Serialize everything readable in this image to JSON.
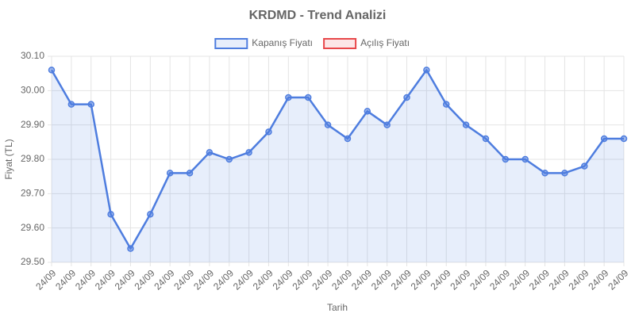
{
  "chart_data": {
    "type": "line",
    "title": "KRDMD - Trend Analizi",
    "x_label": "Tarih",
    "y_label": "Fiyat (TL)",
    "categories": [
      "24/09",
      "24/09",
      "24/09",
      "24/09",
      "24/09",
      "24/09",
      "24/09",
      "24/09",
      "24/09",
      "24/09",
      "24/09",
      "24/09",
      "24/09",
      "24/09",
      "24/09",
      "24/09",
      "24/09",
      "24/09",
      "24/09",
      "24/09",
      "24/09",
      "24/09",
      "24/09",
      "24/09",
      "24/09",
      "24/09",
      "24/09",
      "24/09",
      "24/09",
      "24/09"
    ],
    "series": [
      {
        "name": "Kapanış Fiyatı",
        "color": "#4e7ddf",
        "fill": true,
        "values": [
          30.06,
          29.96,
          29.96,
          29.64,
          29.54,
          29.64,
          29.76,
          29.76,
          29.82,
          29.8,
          29.82,
          29.88,
          29.98,
          29.98,
          29.9,
          29.86,
          29.94,
          29.9,
          29.98,
          30.06,
          29.96,
          29.9,
          29.86,
          29.8,
          29.8,
          29.76,
          29.76,
          29.78,
          29.86,
          29.86
        ]
      },
      {
        "name": "Açılış Fiyatı",
        "color": "#e8474a",
        "fill": false,
        "values": [
          null,
          null,
          null,
          null,
          null,
          null,
          null,
          null,
          null,
          null,
          null,
          null,
          null,
          null,
          null,
          null,
          null,
          null,
          null,
          null,
          null,
          null,
          null,
          null,
          null,
          null,
          null,
          null,
          null,
          null
        ]
      }
    ],
    "ylim": [
      29.5,
      30.1
    ],
    "yticks": [
      {
        "value": 29.5,
        "label": "29.50"
      },
      {
        "value": 29.6,
        "label": "29.60"
      },
      {
        "value": 29.7,
        "label": "29.70"
      },
      {
        "value": 29.8,
        "label": "29.80"
      },
      {
        "value": 29.9,
        "label": "29.90"
      },
      {
        "value": 30.0,
        "label": "30.00"
      },
      {
        "value": 30.1,
        "label": "30.10"
      }
    ],
    "grid": true,
    "legend": "top"
  }
}
